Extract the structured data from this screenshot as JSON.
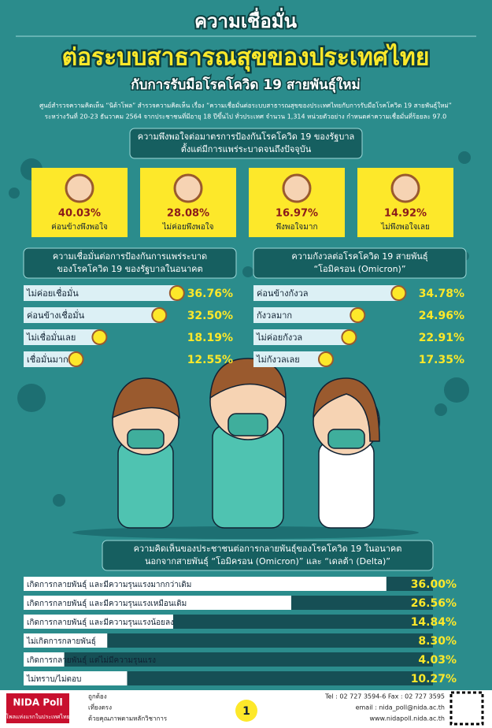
{
  "header": {
    "title": "ความเชื่อมั่น",
    "title_highlight": "ต่อระบบสาธารณสุขของประเทศไทย",
    "subtitle": "กับการรับมือโรคโควิด 19 สายพันธุ์ใหม่",
    "description": [
      "ศูนย์สำรวจความคิดเห็น “นิด้าโพล” สำรวจความคิดเห็น เรื่อง “ความเชื่อมั่นต่อระบบสาธารณสุขของประเทศไทยกับการรับมือโรคโควิด 19 สายพันธุ์ใหม่”",
      "ระหว่างวันที่ 20-23 ธันวาคม 2564 จากประชาชนที่มีอายุ 18 ปีขึ้นไป ทั่วประเทศ จำนวน 1,314 หน่วยตัวอย่าง กำหนดค่าความเชื่อมั่นที่ร้อยละ 97.0"
    ]
  },
  "chart_data": [
    {
      "type": "card",
      "title": [
        "ความพึงพอใจต่อมาตรการป้องกันโรคโควิด 19 ของรัฐบาล",
        "ตั้งแต่มีการแพร่ระบาดจนถึงปัจจุบัน"
      ],
      "categories": [
        "ค่อนข้างพึงพอใจ",
        "ไม่ค่อยพึงพอใจ",
        "พึงพอใจมาก",
        "ไม่พึงพอใจเลย"
      ],
      "values": [
        40.03,
        28.08,
        16.97,
        14.92
      ],
      "value_labels": [
        "40.03%",
        "28.08%",
        "16.97%",
        "14.92%"
      ],
      "color": "#fde82a"
    },
    {
      "type": "bar",
      "title": [
        "ความเชื่อมั่นต่อการป้องกันการแพร่ระบาด",
        "ของโรคโควิด 19 ของรัฐบาลในอนาคต"
      ],
      "categories": [
        "ไม่ค่อยเชื่อมั่น",
        "ค่อนข้างเชื่อมั่น",
        "ไม่เชื่อมั่นเลย",
        "เชื่อมั่นมาก"
      ],
      "values": [
        36.76,
        32.5,
        18.19,
        12.55
      ],
      "value_labels": [
        "36.76%",
        "32.50%",
        "18.19%",
        "12.55%"
      ],
      "color": "#dcf0f5"
    },
    {
      "type": "bar",
      "title": [
        "ความกังวลต่อโรคโควิด 19 สายพันธุ์",
        "“โอมิครอน (Omicron)”"
      ],
      "categories": [
        "ค่อนข้างกังวล",
        "กังวลมาก",
        "ไม่ค่อยกังวล",
        "ไม่กังวลเลย"
      ],
      "values": [
        34.78,
        24.96,
        22.91,
        17.35
      ],
      "value_labels": [
        "34.78%",
        "24.96%",
        "22.91%",
        "17.35%"
      ],
      "color": "#dcf0f5"
    },
    {
      "type": "bar",
      "title": [
        "ความคิดเห็นของประชาชนต่อการกลายพันธุ์ของโรคโควิด 19 ในอนาคต",
        "นอกจากสายพันธุ์ “โอมิครอน (Omicron)” และ “เดลต้า (Delta)”"
      ],
      "categories": [
        "เกิดการกลายพันธุ์ และมีความรุนแรงมากกว่าเดิม",
        "เกิดการกลายพันธุ์ และมีความรุนแรงเหมือนเดิม",
        "เกิดการกลายพันธุ์ และมีความรุนแรงน้อยลง",
        "ไม่เกิดการกลายพันธุ์",
        "เกิดการกลายพันธุ์ แต่ไม่มีความรุนแรง",
        "ไม่ทราบ/ไม่ตอบ"
      ],
      "values": [
        36.0,
        26.56,
        14.84,
        8.3,
        4.03,
        10.27
      ],
      "value_labels": [
        "36.00%",
        "26.56%",
        "14.84%",
        "8.30%",
        "4.03%",
        "10.27%"
      ],
      "color": "#ffffff"
    }
  ],
  "footer": {
    "brand": "NIDA Poll",
    "tagline": "โพลแห่งแรกในประเทศไทย",
    "motto": [
      "ถูกต้อง",
      "เที่ยงตรง",
      "ด้วยคุณภาพตามหลักวิชาการ"
    ],
    "page_number": "1",
    "contact": [
      "Tel : 02 727 3594-6 Fax : 02 727 3595",
      "email : nida_poll@nida.ac.th",
      "www.nidapoll.nida.ac.th"
    ]
  }
}
